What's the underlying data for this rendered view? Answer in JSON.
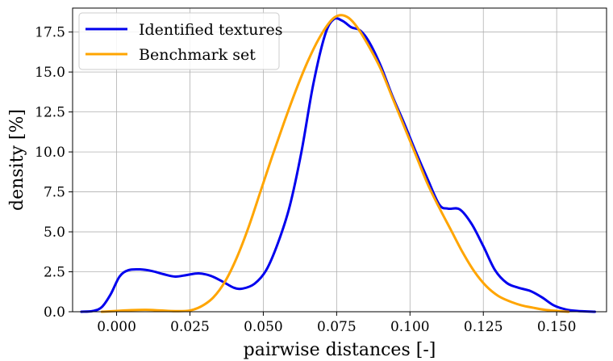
{
  "chart_data": {
    "type": "line",
    "xlabel": "pairwise distances [-]",
    "ylabel": "density [%]",
    "xlim": [
      -0.015,
      0.167
    ],
    "ylim": [
      0,
      19.0
    ],
    "xticks": [
      "0.000",
      "0.025",
      "0.050",
      "0.075",
      "0.100",
      "0.125",
      "0.150"
    ],
    "yticks": [
      "0.0",
      "2.5",
      "5.0",
      "7.5",
      "10.0",
      "12.5",
      "15.0",
      "17.5"
    ],
    "grid": true,
    "legend_position": "top-left",
    "series": [
      {
        "name": "Identified textures",
        "color": "#0000ee",
        "points": [
          [
            -0.012,
            0.0
          ],
          [
            -0.008,
            0.05
          ],
          [
            -0.005,
            0.3
          ],
          [
            -0.002,
            1.1
          ],
          [
            0.001,
            2.2
          ],
          [
            0.004,
            2.6
          ],
          [
            0.008,
            2.65
          ],
          [
            0.012,
            2.55
          ],
          [
            0.016,
            2.35
          ],
          [
            0.02,
            2.2
          ],
          [
            0.024,
            2.3
          ],
          [
            0.028,
            2.4
          ],
          [
            0.032,
            2.25
          ],
          [
            0.036,
            1.9
          ],
          [
            0.04,
            1.5
          ],
          [
            0.043,
            1.45
          ],
          [
            0.047,
            1.75
          ],
          [
            0.051,
            2.6
          ],
          [
            0.055,
            4.3
          ],
          [
            0.059,
            6.6
          ],
          [
            0.063,
            10.0
          ],
          [
            0.067,
            14.2
          ],
          [
            0.071,
            17.3
          ],
          [
            0.074,
            18.3
          ],
          [
            0.077,
            18.2
          ],
          [
            0.08,
            17.8
          ],
          [
            0.083,
            17.6
          ],
          [
            0.086,
            16.9
          ],
          [
            0.09,
            15.4
          ],
          [
            0.094,
            13.5
          ],
          [
            0.098,
            11.8
          ],
          [
            0.102,
            10.0
          ],
          [
            0.106,
            8.3
          ],
          [
            0.11,
            6.7
          ],
          [
            0.113,
            6.45
          ],
          [
            0.117,
            6.4
          ],
          [
            0.121,
            5.5
          ],
          [
            0.125,
            4.1
          ],
          [
            0.129,
            2.6
          ],
          [
            0.133,
            1.8
          ],
          [
            0.137,
            1.5
          ],
          [
            0.141,
            1.3
          ],
          [
            0.145,
            0.9
          ],
          [
            0.149,
            0.4
          ],
          [
            0.153,
            0.15
          ],
          [
            0.157,
            0.05
          ],
          [
            0.163,
            0.0
          ]
        ]
      },
      {
        "name": "Benchmark set",
        "color": "#ffa500",
        "points": [
          [
            -0.005,
            0.0
          ],
          [
            0.0,
            0.05
          ],
          [
            0.005,
            0.1
          ],
          [
            0.01,
            0.12
          ],
          [
            0.015,
            0.08
          ],
          [
            0.02,
            0.04
          ],
          [
            0.025,
            0.08
          ],
          [
            0.029,
            0.35
          ],
          [
            0.033,
            0.9
          ],
          [
            0.037,
            1.9
          ],
          [
            0.041,
            3.4
          ],
          [
            0.045,
            5.3
          ],
          [
            0.049,
            7.5
          ],
          [
            0.053,
            9.7
          ],
          [
            0.057,
            11.8
          ],
          [
            0.061,
            13.8
          ],
          [
            0.065,
            15.6
          ],
          [
            0.069,
            17.1
          ],
          [
            0.073,
            18.2
          ],
          [
            0.076,
            18.55
          ],
          [
            0.079,
            18.4
          ],
          [
            0.082,
            17.8
          ],
          [
            0.086,
            16.6
          ],
          [
            0.09,
            15.2
          ],
          [
            0.094,
            13.4
          ],
          [
            0.098,
            11.6
          ],
          [
            0.102,
            9.8
          ],
          [
            0.106,
            8.0
          ],
          [
            0.11,
            6.5
          ],
          [
            0.114,
            5.1
          ],
          [
            0.118,
            3.7
          ],
          [
            0.122,
            2.5
          ],
          [
            0.126,
            1.6
          ],
          [
            0.13,
            1.0
          ],
          [
            0.134,
            0.65
          ],
          [
            0.138,
            0.4
          ],
          [
            0.142,
            0.25
          ],
          [
            0.146,
            0.12
          ],
          [
            0.15,
            0.05
          ],
          [
            0.154,
            0.0
          ]
        ]
      }
    ]
  }
}
